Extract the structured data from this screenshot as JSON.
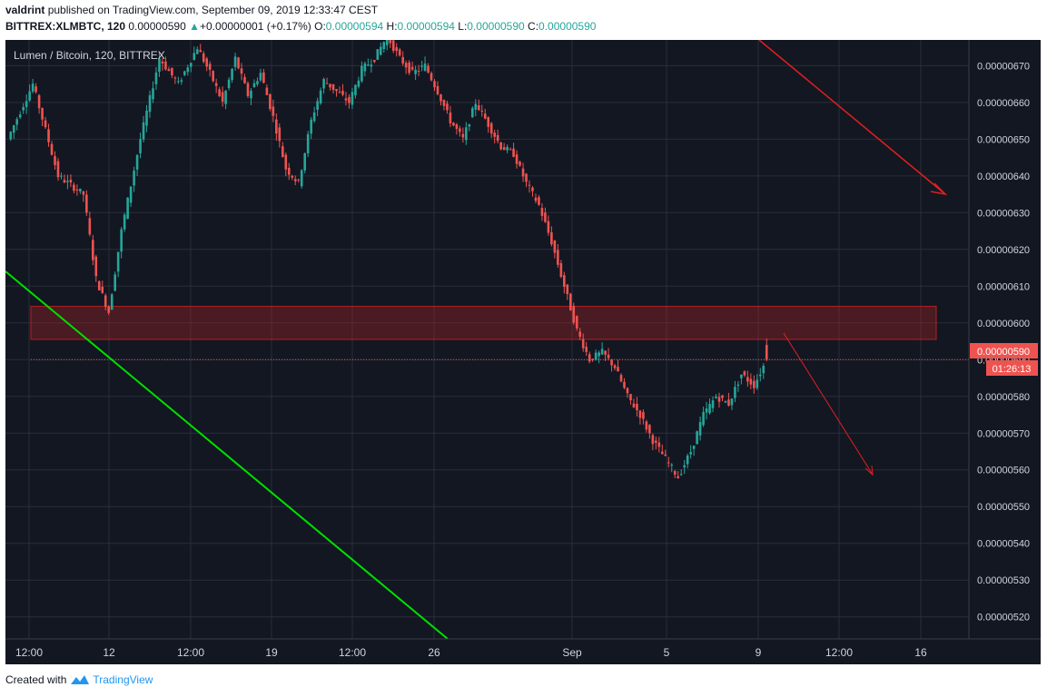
{
  "header": {
    "author": "valdrint",
    "published_text": "published on TradingView.com, September 09, 2019 12:33:47 CEST",
    "symbol": "BITTREX:XLMBTC, 120",
    "last": "0.00000590",
    "change_arrow": "▲",
    "change": "+0.00000001 (+0.17%)",
    "o_label": "O:",
    "o_value": "0.00000594",
    "h_label": "H:",
    "h_value": "0.00000594",
    "l_label": "L:",
    "l_value": "0.00000590",
    "c_label": "C:",
    "c_value": "0.00000590"
  },
  "legend_title": "Lumen / Bitcoin, 120, BITTREX",
  "price_badge": "0.00000590",
  "countdown_badge": "01:26:13",
  "footer": {
    "created_with": "Created with",
    "brand": "TradingView",
    "logo_icon": "tradingview-logo-icon"
  },
  "colors": {
    "background": "#131722",
    "grid": "#2a2e39",
    "up": "#26a69a",
    "down": "#ef5350",
    "zone": "#b22222",
    "trendline": "#00e000",
    "arrow": "#e02020"
  },
  "chart_data": {
    "type": "candlestick",
    "title": "Lumen / Bitcoin, 120, BITTREX",
    "y_ticks": [
      "0.00000670",
      "0.00000660",
      "0.00000650",
      "0.00000640",
      "0.00000630",
      "0.00000620",
      "0.00000610",
      "0.00000600",
      "0.00000590",
      "0.00000580",
      "0.00000570",
      "0.00000560",
      "0.00000550",
      "0.00000540",
      "0.00000530",
      "0.00000520"
    ],
    "x_ticks": [
      "12:00",
      "12",
      "12:00",
      "19",
      "12:00",
      "26",
      "Sep",
      "5",
      "9",
      "12:00",
      "16"
    ],
    "ylim": [
      5.14e-06,
      6.77e-06
    ],
    "last_price": 5.9e-06,
    "resistance_zone": [
      5.955e-06,
      6.045e-06
    ],
    "price_path": [
      [
        0,
        6.5e-06
      ],
      [
        4,
        6.65e-06
      ],
      [
        8,
        6.4e-06
      ],
      [
        12,
        6.35e-06
      ],
      [
        14,
        6.12e-06
      ],
      [
        16,
        6.03e-06
      ],
      [
        18,
        6.25e-06
      ],
      [
        21,
        6.5e-06
      ],
      [
        24,
        6.72e-06
      ],
      [
        27,
        6.65e-06
      ],
      [
        30,
        6.75e-06
      ],
      [
        32,
        6.68e-06
      ],
      [
        34,
        6.6e-06
      ],
      [
        36,
        6.72e-06
      ],
      [
        38,
        6.62e-06
      ],
      [
        40,
        6.68e-06
      ],
      [
        42,
        6.56e-06
      ],
      [
        44,
        6.42e-06
      ],
      [
        46,
        6.38e-06
      ],
      [
        48,
        6.55e-06
      ],
      [
        50,
        6.66e-06
      ],
      [
        52,
        6.63e-06
      ],
      [
        54,
        6.6e-06
      ],
      [
        56,
        6.69e-06
      ],
      [
        58,
        6.72e-06
      ],
      [
        60,
        6.78e-06
      ],
      [
        62,
        6.72e-06
      ],
      [
        64,
        6.68e-06
      ],
      [
        66,
        6.7e-06
      ],
      [
        68,
        6.63e-06
      ],
      [
        70,
        6.55e-06
      ],
      [
        72,
        6.5e-06
      ],
      [
        74,
        6.6e-06
      ],
      [
        76,
        6.54e-06
      ],
      [
        78,
        6.48e-06
      ],
      [
        80,
        6.46e-06
      ],
      [
        82,
        6.38e-06
      ],
      [
        84,
        6.32e-06
      ],
      [
        86,
        6.22e-06
      ],
      [
        88,
        6.1e-06
      ],
      [
        90,
        5.98e-06
      ],
      [
        92,
        5.9e-06
      ],
      [
        94,
        5.92e-06
      ],
      [
        96,
        5.88e-06
      ],
      [
        98,
        5.8e-06
      ],
      [
        100,
        5.75e-06
      ],
      [
        102,
        5.68e-06
      ],
      [
        104,
        5.63e-06
      ],
      [
        106,
        5.58e-06
      ],
      [
        108,
        5.65e-06
      ],
      [
        110,
        5.75e-06
      ],
      [
        112,
        5.8e-06
      ],
      [
        114,
        5.78e-06
      ],
      [
        116,
        5.86e-06
      ],
      [
        118,
        5.83e-06
      ],
      [
        120,
        5.9e-06
      ]
    ],
    "annotations": [
      "resistance-zone",
      "green-descending-trendline",
      "red-projection-arrow-upper",
      "red-projection-arrow-lower",
      "last-price-line"
    ]
  }
}
